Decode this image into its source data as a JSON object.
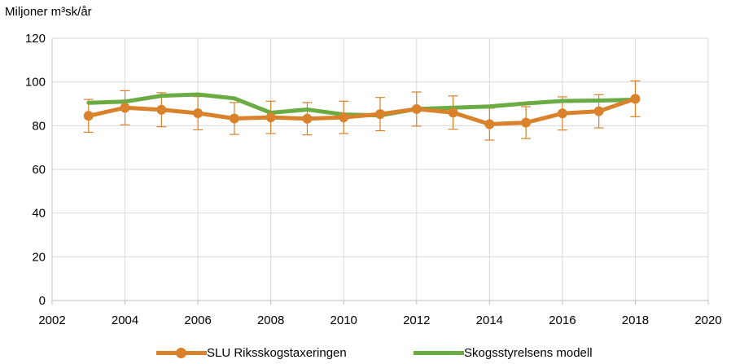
{
  "chart_data": {
    "type": "line",
    "ylabel": "Miljoner m³sk/år",
    "xlim": [
      2002,
      2020
    ],
    "ylim": [
      0,
      120
    ],
    "x_ticks": [
      2002,
      2004,
      2006,
      2008,
      2010,
      2012,
      2014,
      2016,
      2018,
      2020
    ],
    "y_ticks": [
      0,
      20,
      40,
      60,
      80,
      100,
      120
    ],
    "grid": true,
    "legend_position": "bottom",
    "series": [
      {
        "name": "SLU Riksskogstaxeringen",
        "color": "#D9822B",
        "marker": "circle",
        "x": [
          2003,
          2004,
          2005,
          2006,
          2007,
          2008,
          2009,
          2010,
          2011,
          2012,
          2013,
          2014,
          2015,
          2016,
          2017,
          2018
        ],
        "values": [
          84.5,
          88.2,
          87.3,
          85.7,
          83.3,
          83.8,
          83.2,
          83.8,
          85.3,
          87.6,
          86.0,
          80.7,
          81.4,
          85.6,
          86.6,
          92.3
        ],
        "error": [
          7.5,
          7.8,
          7.8,
          7.6,
          7.3,
          7.4,
          7.4,
          7.4,
          7.6,
          7.8,
          7.6,
          7.3,
          7.3,
          7.6,
          7.6,
          8.2
        ]
      },
      {
        "name": "Skogsstyrelsens modell",
        "color": "#6AAB44",
        "marker": "none",
        "x": [
          2003,
          2004,
          2005,
          2006,
          2007,
          2008,
          2009,
          2010,
          2011,
          2012,
          2013,
          2014,
          2015,
          2016,
          2017,
          2018
        ],
        "values": [
          90.5,
          91.0,
          93.7,
          94.3,
          92.5,
          85.9,
          87.4,
          85.1,
          84.7,
          87.6,
          88.2,
          88.8,
          90.2,
          91.3,
          91.5,
          91.9
        ]
      }
    ]
  }
}
